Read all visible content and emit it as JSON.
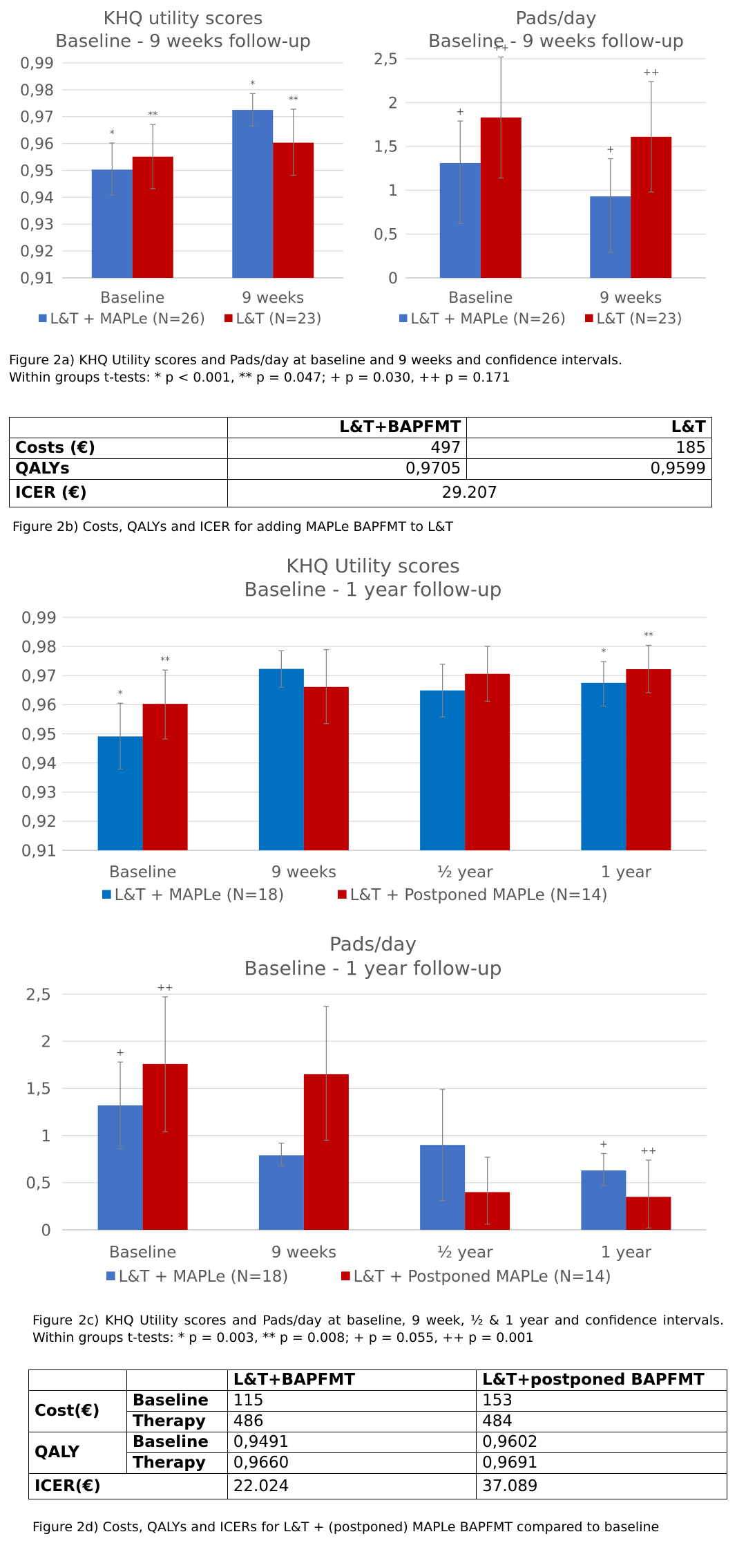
{
  "colors": {
    "blue_2a": "#4472c4",
    "blue_2c": "#0070c0",
    "red": "#c00000",
    "grid": "#d9d9d9",
    "axis_text": "#595959"
  },
  "chart_data": [
    {
      "type": "bar",
      "title": "KHQ utility scores",
      "subtitle": "Baseline - 9 weeks follow-up",
      "categories": [
        "Baseline",
        "9 weeks"
      ],
      "series": [
        {
          "name": "L&T + MAPLe (N=26)",
          "values": [
            0.9503,
            0.9725
          ],
          "err_low": [
            0.9409,
            0.9665
          ],
          "err_high": [
            0.9602,
            0.9786
          ],
          "markers": [
            "*",
            "*"
          ]
        },
        {
          "name": "L&T (N=23)",
          "values": [
            0.9551,
            0.9603
          ],
          "err_low": [
            0.9432,
            0.9482
          ],
          "err_high": [
            0.9671,
            0.9728
          ],
          "markers": [
            "**",
            "**"
          ]
        }
      ],
      "ylim": [
        0.91,
        0.99
      ],
      "yticks": [
        "0,91",
        "0,92",
        "0,93",
        "0,94",
        "0,95",
        "0,96",
        "0,97",
        "0,98",
        "0,99"
      ],
      "ytick_values": [
        0.91,
        0.92,
        0.93,
        0.94,
        0.95,
        0.96,
        0.97,
        0.98,
        0.99
      ],
      "xlabel": "",
      "ylabel": "",
      "grid": true,
      "legend": "bottom"
    },
    {
      "type": "bar",
      "title": "Pads/day",
      "subtitle": "Baseline - 9 weeks follow-up",
      "categories": [
        "Baseline",
        "9 weeks"
      ],
      "series": [
        {
          "name": "L&T + MAPLe (N=26)",
          "values": [
            1.31,
            0.93
          ],
          "err_low": [
            0.62,
            0.29
          ],
          "err_high": [
            1.79,
            1.36
          ],
          "markers": [
            "+",
            "+"
          ]
        },
        {
          "name": "L&T (N=23)",
          "values": [
            1.83,
            1.61
          ],
          "err_low": [
            1.14,
            0.98
          ],
          "err_high": [
            2.52,
            2.24
          ],
          "markers": [
            "++",
            "++"
          ]
        }
      ],
      "ylim": [
        0,
        2.6
      ],
      "yticks": [
        "0",
        "0,5",
        "1",
        "1,5",
        "2",
        "2,5"
      ],
      "ytick_values": [
        0,
        0.5,
        1,
        1.5,
        2,
        2.5
      ],
      "xlabel": "",
      "ylabel": "",
      "grid": true,
      "legend": "bottom"
    },
    {
      "type": "bar",
      "title": "KHQ Utility scores",
      "subtitle": "Baseline - 1 year follow-up",
      "categories": [
        "Baseline",
        "9 weeks",
        "½ year",
        "1 year"
      ],
      "series": [
        {
          "name": "L&T + MAPLe (N=18)",
          "values": [
            0.9491,
            0.9723,
            0.9649,
            0.9675
          ],
          "err_low": [
            0.9379,
            0.966,
            0.9558,
            0.9595
          ],
          "err_high": [
            0.9605,
            0.9785,
            0.9739,
            0.9748
          ],
          "markers": [
            "*",
            "",
            "",
            "*"
          ]
        },
        {
          "name": "L&T + Postponed MAPLe (N=14)",
          "values": [
            0.9603,
            0.9661,
            0.9706,
            0.9722
          ],
          "err_low": [
            0.9482,
            0.9535,
            0.9612,
            0.9641
          ],
          "err_high": [
            0.9719,
            0.9789,
            0.9801,
            0.9804
          ],
          "markers": [
            "**",
            "",
            "",
            "**"
          ]
        }
      ],
      "ylim": [
        0.91,
        0.99
      ],
      "yticks": [
        "0,91",
        "0,92",
        "0,93",
        "0,94",
        "0,95",
        "0,96",
        "0,97",
        "0,98",
        "0,99"
      ],
      "ytick_values": [
        0.91,
        0.92,
        0.93,
        0.94,
        0.95,
        0.96,
        0.97,
        0.98,
        0.99
      ],
      "xlabel": "",
      "ylabel": "",
      "grid": true,
      "legend": "bottom"
    },
    {
      "type": "bar",
      "title": "Pads/day",
      "subtitle": "Baseline - 1 year follow-up",
      "categories": [
        "Baseline",
        "9 weeks",
        "½ year",
        "1 year"
      ],
      "series": [
        {
          "name": "L&T + MAPLe (N=18)",
          "values": [
            1.32,
            0.79,
            0.9,
            0.63
          ],
          "err_low": [
            0.86,
            0.68,
            0.31,
            0.47
          ],
          "err_high": [
            1.78,
            0.92,
            1.49,
            0.81
          ],
          "markers": [
            "+",
            "",
            "",
            "+"
          ]
        },
        {
          "name": "L&T + Postponed MAPLe (N=14)",
          "values": [
            1.76,
            1.65,
            0.4,
            0.35
          ],
          "err_low": [
            1.04,
            0.95,
            0.06,
            0.02
          ],
          "err_high": [
            2.47,
            2.37,
            0.77,
            0.74
          ],
          "markers": [
            "++",
            "",
            "",
            "++"
          ]
        }
      ],
      "ylim": [
        0,
        2.5
      ],
      "yticks": [
        "0",
        "0,5",
        "1",
        "1,5",
        "2",
        "2,5"
      ],
      "ytick_values": [
        0,
        0.5,
        1,
        1.5,
        2,
        2.5
      ],
      "xlabel": "",
      "ylabel": "",
      "grid": true,
      "legend": "bottom"
    }
  ],
  "captions": {
    "fig2a_line1": "Figure 2a) KHQ Utility scores and Pads/day at baseline and 9 weeks and confidence intervals.",
    "fig2a_line2": "Within groups t-tests: * p < 0.001, ** p = 0.047; + p = 0.030, ++ p = 0.171",
    "fig2b": "Figure 2b) Costs, QALYs and ICER for adding MAPLe BAPFMT to L&T",
    "fig2c": "Figure 2c) KHQ Utility scores and Pads/day at baseline, 9 week, ½ & 1 year and confidence intervals. Within groups t-tests: * p = 0.003, ** p = 0.008; + p = 0.055, ++ p = 0.001",
    "fig2d": "Figure 2d) Costs, QALYs and ICERs for L&T + (postponed) MAPLe BAPFMT compared to baseline"
  },
  "table_2b": {
    "headers": [
      "",
      "L&T+BAPFMT",
      "L&T"
    ],
    "rows": [
      {
        "label": "Costs (€)",
        "a": "497",
        "b": "185"
      },
      {
        "label": "QALYs",
        "a": "0,9705",
        "b": "0,9599"
      }
    ],
    "icer_label": "ICER (€)",
    "icer_value": "29.207"
  },
  "table_2d": {
    "headers": [
      "",
      "",
      "L&T+BAPFMT",
      "L&T+postponed BAPFMT"
    ],
    "groups": [
      {
        "label": "Cost(€)",
        "rows": [
          {
            "sub": "Baseline",
            "a": "115",
            "b": "153"
          },
          {
            "sub": "Therapy",
            "a": "486",
            "b": "484"
          }
        ]
      },
      {
        "label": "QALY",
        "rows": [
          {
            "sub": "Baseline",
            "a": "0,9491",
            "b": "0,9602"
          },
          {
            "sub": "Therapy",
            "a": "0,9660",
            "b": "0,9691"
          }
        ]
      }
    ],
    "icer_label": "ICER(€)",
    "icer_a": "22.024",
    "icer_b": "37.089"
  }
}
